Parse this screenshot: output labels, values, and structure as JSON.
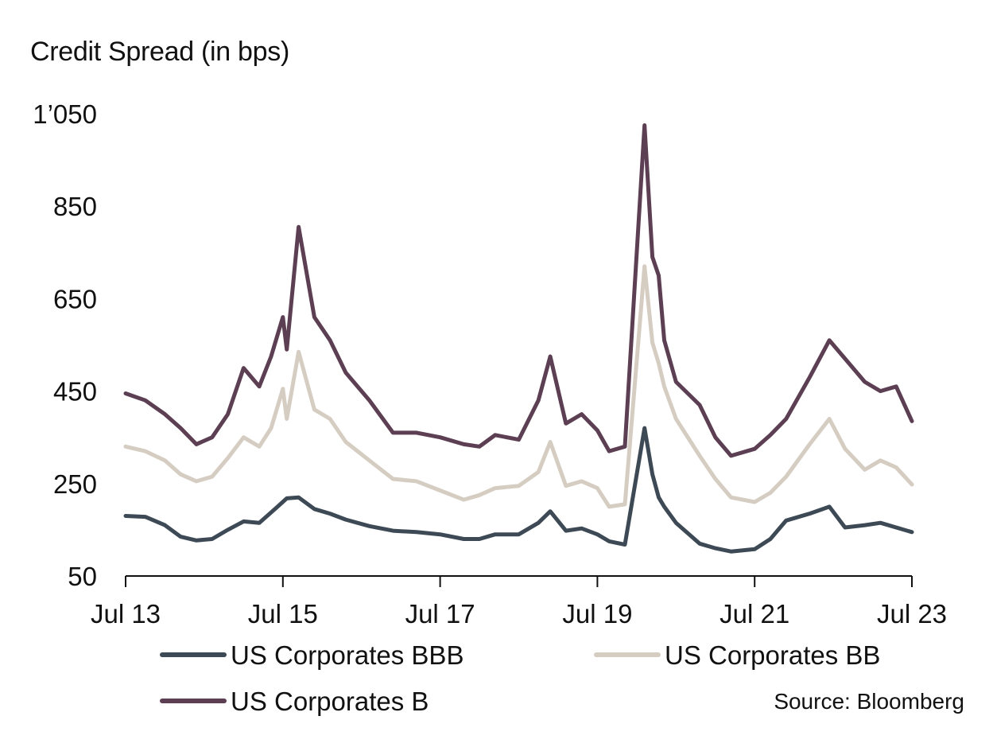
{
  "chart_data": {
    "type": "line",
    "title": "",
    "ylabel": "Credit Spread (in bps)",
    "xlabel": "",
    "source": "Source: Bloomberg",
    "ylim": [
      50,
      1050
    ],
    "yticks": [
      50,
      250,
      450,
      650,
      850,
      1050
    ],
    "ytick_labels": [
      "50",
      "250",
      "450",
      "650",
      "850",
      "1’050"
    ],
    "xlim": [
      2013.5,
      2023.5
    ],
    "xticks": [
      2013.5,
      2015.5,
      2017.5,
      2019.5,
      2021.5,
      2023.5
    ],
    "xtick_labels": [
      "Jul 13",
      "Jul 15",
      "Jul 17",
      "Jul 19",
      "Jul 21",
      "Jul 23"
    ],
    "grid": false,
    "legend_position": "bottom",
    "series": [
      {
        "name": "US Corporates BBB",
        "color": "#3d4a55",
        "x": [
          2013.5,
          2013.75,
          2014.0,
          2014.2,
          2014.4,
          2014.6,
          2014.8,
          2015.0,
          2015.2,
          2015.4,
          2015.55,
          2015.7,
          2015.9,
          2016.1,
          2016.3,
          2016.6,
          2016.9,
          2017.2,
          2017.5,
          2017.8,
          2018.0,
          2018.2,
          2018.5,
          2018.75,
          2018.9,
          2019.1,
          2019.3,
          2019.5,
          2019.65,
          2019.85,
          2020.1,
          2020.2,
          2020.28,
          2020.35,
          2020.5,
          2020.8,
          2021.0,
          2021.2,
          2021.5,
          2021.7,
          2021.9,
          2022.2,
          2022.45,
          2022.65,
          2022.9,
          2023.1,
          2023.3,
          2023.5
        ],
        "y": [
          180,
          178,
          160,
          135,
          127,
          130,
          150,
          168,
          165,
          195,
          218,
          220,
          195,
          185,
          172,
          158,
          148,
          145,
          140,
          130,
          130,
          140,
          140,
          165,
          190,
          148,
          153,
          140,
          125,
          118,
          370,
          270,
          220,
          200,
          165,
          120,
          110,
          103,
          108,
          130,
          170,
          185,
          200,
          155,
          160,
          165,
          155,
          145
        ]
      },
      {
        "name": "US Corporates BB",
        "color": "#d6cdc2",
        "x": [
          2013.5,
          2013.75,
          2014.0,
          2014.2,
          2014.4,
          2014.6,
          2014.8,
          2015.0,
          2015.2,
          2015.35,
          2015.5,
          2015.55,
          2015.7,
          2015.9,
          2016.1,
          2016.3,
          2016.6,
          2016.9,
          2017.2,
          2017.5,
          2017.8,
          2018.0,
          2018.2,
          2018.5,
          2018.75,
          2018.9,
          2019.1,
          2019.3,
          2019.5,
          2019.65,
          2019.85,
          2020.1,
          2020.2,
          2020.28,
          2020.35,
          2020.5,
          2020.8,
          2021.0,
          2021.2,
          2021.5,
          2021.7,
          2021.9,
          2022.2,
          2022.45,
          2022.65,
          2022.9,
          2023.1,
          2023.3,
          2023.5
        ],
        "y": [
          330,
          320,
          300,
          270,
          255,
          265,
          305,
          350,
          330,
          370,
          455,
          390,
          535,
          410,
          390,
          340,
          300,
          260,
          255,
          235,
          215,
          225,
          240,
          245,
          275,
          340,
          245,
          255,
          240,
          200,
          205,
          720,
          555,
          510,
          460,
          390,
          310,
          260,
          220,
          210,
          230,
          265,
          335,
          390,
          325,
          280,
          300,
          285,
          248
        ]
      },
      {
        "name": "US Corporates B",
        "color": "#5c3f52",
        "x": [
          2013.5,
          2013.75,
          2014.0,
          2014.2,
          2014.4,
          2014.6,
          2014.8,
          2015.0,
          2015.2,
          2015.35,
          2015.5,
          2015.55,
          2015.7,
          2015.9,
          2016.1,
          2016.3,
          2016.6,
          2016.9,
          2017.2,
          2017.5,
          2017.8,
          2018.0,
          2018.2,
          2018.5,
          2018.75,
          2018.9,
          2019.1,
          2019.3,
          2019.5,
          2019.65,
          2019.85,
          2020.1,
          2020.2,
          2020.28,
          2020.35,
          2020.5,
          2020.8,
          2021.0,
          2021.2,
          2021.5,
          2021.7,
          2021.9,
          2022.2,
          2022.45,
          2022.65,
          2022.9,
          2023.1,
          2023.3,
          2023.5
        ],
        "y": [
          445,
          430,
          400,
          370,
          335,
          350,
          400,
          500,
          460,
          525,
          610,
          540,
          805,
          610,
          560,
          490,
          430,
          360,
          360,
          350,
          335,
          330,
          355,
          345,
          430,
          525,
          380,
          400,
          365,
          320,
          330,
          1025,
          740,
          700,
          560,
          470,
          420,
          350,
          310,
          325,
          355,
          390,
          480,
          560,
          520,
          470,
          450,
          460,
          385
        ]
      }
    ]
  }
}
